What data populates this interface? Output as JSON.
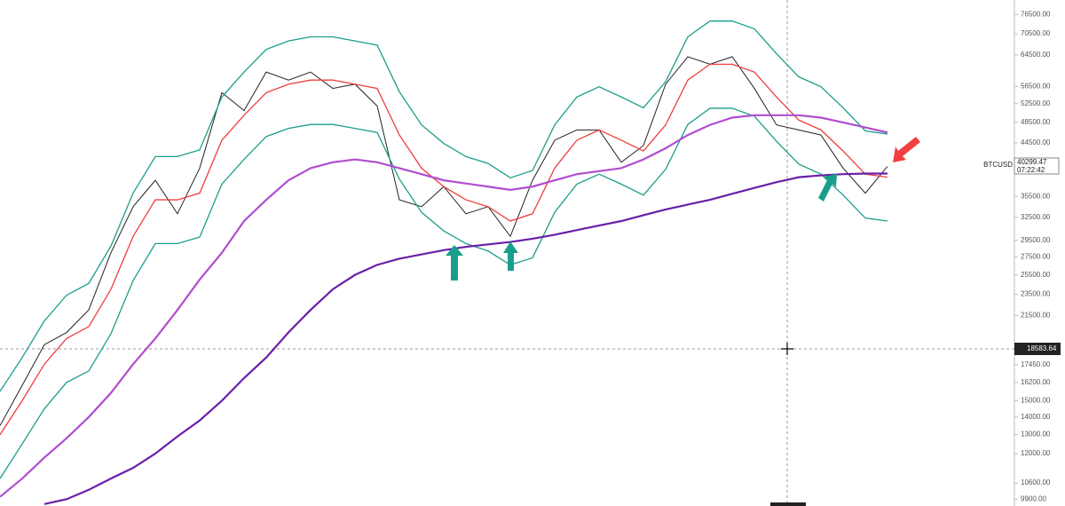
{
  "chart_data": {
    "type": "line",
    "symbol": "BTCUSD",
    "last_price_label": "40299.47",
    "countdown_label": "07:22:42",
    "crosshair_label": "18583.64",
    "categories": [
      null,
      null,
      null,
      null,
      null,
      null,
      null,
      null,
      null,
      null,
      null,
      null,
      null,
      null,
      null,
      null,
      null,
      null,
      null,
      null,
      null,
      null,
      null,
      null,
      null,
      null,
      null,
      null,
      null,
      null,
      null,
      null,
      null,
      null,
      null,
      null,
      null,
      null,
      null,
      null,
      null
    ],
    "log_scale": true,
    "grid": false,
    "ylim": [
      9620,
      81300
    ],
    "yticks": [
      {
        "value": 76500,
        "label": "76500.00"
      },
      {
        "value": 70500,
        "label": "70500.00"
      },
      {
        "value": 64500,
        "label": "64500.00"
      },
      {
        "value": 56500,
        "label": "56500.00"
      },
      {
        "value": 52500,
        "label": "52500.00"
      },
      {
        "value": 48500,
        "label": "48500.00"
      },
      {
        "value": 44500,
        "label": "44500.00"
      },
      {
        "value": 35500,
        "label": "35500.00"
      },
      {
        "value": 32500,
        "label": "32500.00"
      },
      {
        "value": 29500,
        "label": "29500.00"
      },
      {
        "value": 27500,
        "label": "27500.00"
      },
      {
        "value": 25500,
        "label": "25500.00"
      },
      {
        "value": 23500,
        "label": "23500.00"
      },
      {
        "value": 21500,
        "label": "21500.00"
      },
      {
        "value": 17450,
        "label": "17450.00"
      },
      {
        "value": 16200,
        "label": "16200.00"
      },
      {
        "value": 15000,
        "label": "15000.00"
      },
      {
        "value": 14000,
        "label": "14000.00"
      },
      {
        "value": 13000,
        "label": "13000.00"
      },
      {
        "value": 12000,
        "label": "12000.00"
      },
      {
        "value": 10600,
        "label": "10600.00"
      },
      {
        "value": 9900,
        "label": "9900.00"
      }
    ],
    "series": [
      {
        "color": "#222222",
        "values": [
          13500,
          16000,
          19000,
          20000,
          22000,
          28000,
          34000,
          38000,
          33000,
          40000,
          55000,
          51000,
          60000,
          58000,
          60000,
          56000,
          57000,
          52000,
          35000,
          34000,
          37000,
          33000,
          34000,
          30000,
          38000,
          45000,
          47000,
          47000,
          41000,
          44000,
          57000,
          64000,
          62000,
          64000,
          56000,
          48000,
          47000,
          46000,
          40000,
          36000,
          40300
        ]
      },
      {
        "color": "#ef3d3d",
        "values": [
          13000,
          15000,
          17500,
          19500,
          20500,
          24000,
          30000,
          35000,
          35000,
          36000,
          45000,
          50000,
          55000,
          57000,
          58000,
          58000,
          57000,
          56000,
          46000,
          40000,
          37000,
          35000,
          34000,
          32000,
          33000,
          40000,
          45000,
          47000,
          45000,
          43000,
          48000,
          58000,
          62000,
          62000,
          60000,
          54000,
          49000,
          47000,
          43000,
          39000,
          38500
        ]
      },
      {
        "color": "#1a9e8c",
        "values": [
          15600,
          18000,
          21000,
          23400,
          24600,
          28800,
          36000,
          42000,
          42000,
          43200,
          54000,
          60000,
          66000,
          68400,
          69600,
          69600,
          68400,
          67200,
          55200,
          48000,
          44400,
          42000,
          40800,
          38400,
          39600,
          48000,
          54000,
          56400,
          54000,
          51600,
          57600,
          69600,
          74400,
          74400,
          72000,
          64800,
          58800,
          56400,
          51600,
          46800,
          46200
        ]
      },
      {
        "color": "#1a9e8c",
        "values": [
          10800,
          12500,
          14500,
          16200,
          17000,
          19900,
          24900,
          29100,
          29100,
          29900,
          37400,
          41500,
          45700,
          47300,
          48100,
          48100,
          47300,
          46500,
          38200,
          33200,
          30700,
          29100,
          28200,
          26600,
          27400,
          33200,
          37400,
          39000,
          37400,
          35700,
          39800,
          48100,
          51500,
          51500,
          49800,
          44800,
          40700,
          39000,
          35700,
          32400,
          32000
        ]
      },
      {
        "color": "#b04dd0",
        "values": [
          10000,
          10800,
          11800,
          12800,
          14000,
          15500,
          17500,
          19500,
          22000,
          25000,
          28000,
          32000,
          35000,
          38000,
          40000,
          41000,
          41500,
          41000,
          40000,
          39000,
          38000,
          37500,
          37000,
          36500,
          37000,
          38000,
          39000,
          39500,
          40000,
          41500,
          43500,
          46000,
          48000,
          49500,
          50000,
          50000,
          50000,
          49500,
          48500,
          47500,
          46500
        ]
      },
      {
        "color": "#6a1fa8",
        "values": [
          null,
          null,
          9700,
          9900,
          10300,
          10800,
          11300,
          12000,
          12900,
          13800,
          15000,
          16500,
          18000,
          20000,
          22000,
          24000,
          25500,
          26600,
          27300,
          27800,
          28300,
          28700,
          29000,
          29300,
          29700,
          30200,
          30800,
          31400,
          32000,
          32800,
          33600,
          34300,
          35000,
          35900,
          36800,
          37700,
          38500,
          38800,
          39000,
          39100,
          39100
        ]
      }
    ]
  }
}
